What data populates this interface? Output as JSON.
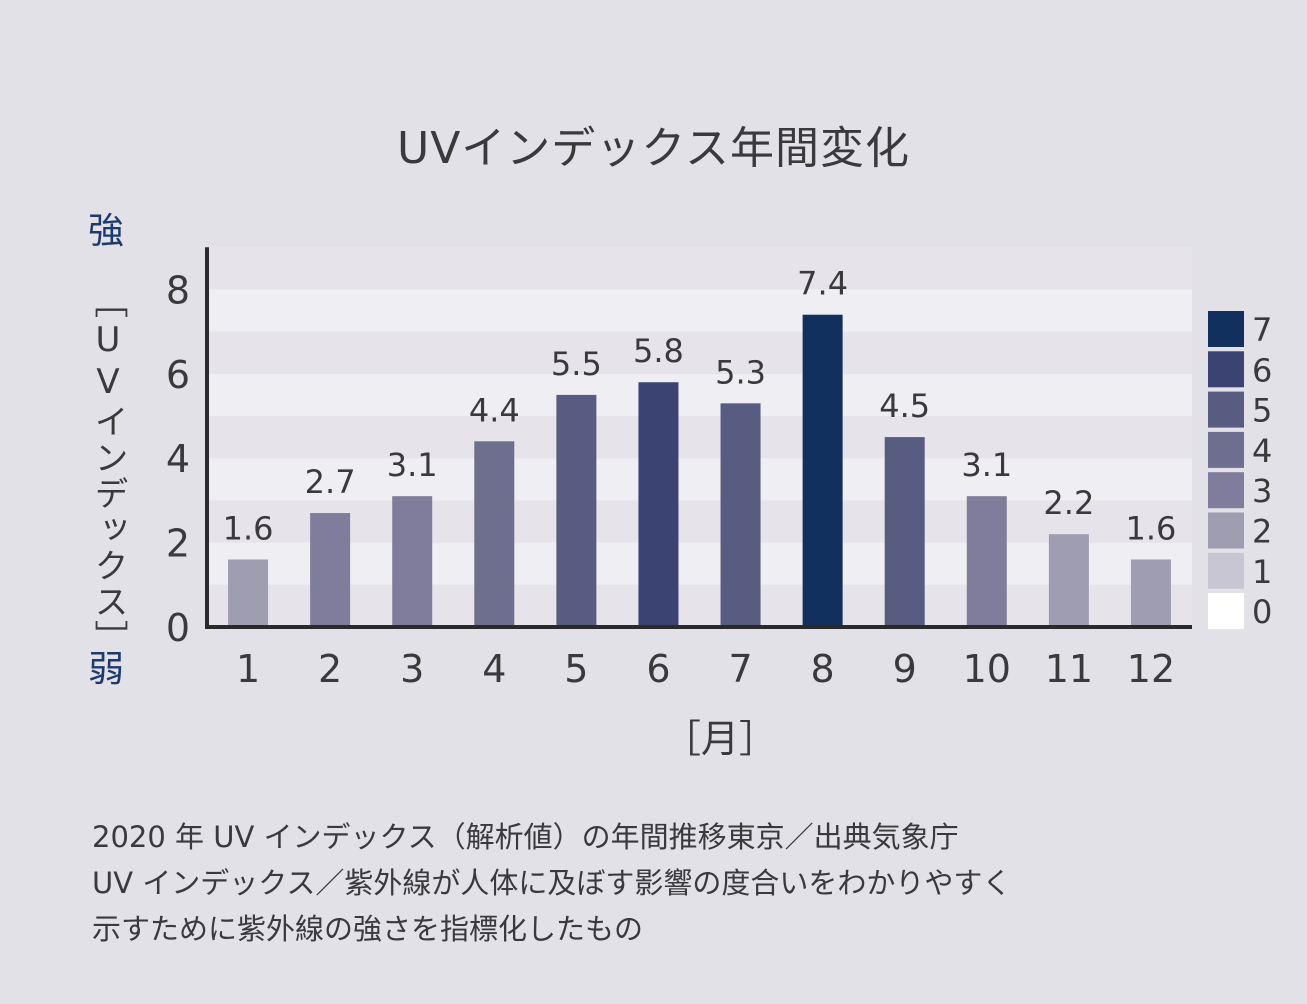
{
  "title": "UVインデックス年間変化",
  "side_top": "強",
  "side_bottom": "弱",
  "ylabel": "［UVインデックス］",
  "xlabel": "［月］",
  "footnote": [
    "2020 年 UV インデックス（解析値）の年間推移東京／出典気象庁",
    "UV インデックス／紫外線が人体に及ぼす影響の度合いをわかりやすく",
    "示すために紫外線の強さを指標化したもの"
  ],
  "chart_data": {
    "type": "bar",
    "categories": [
      "1",
      "2",
      "3",
      "4",
      "5",
      "6",
      "7",
      "8",
      "9",
      "10",
      "11",
      "12"
    ],
    "values": [
      1.6,
      2.7,
      3.1,
      4.4,
      5.5,
      5.8,
      5.3,
      7.4,
      4.5,
      3.1,
      2.2,
      1.6
    ],
    "data_labels": [
      "1.6",
      "2.7",
      "3.1",
      "4.4",
      "5.5",
      "5.8",
      "5.3",
      "7.4",
      "4.5",
      "3.1",
      "2.2",
      "1.6"
    ],
    "ylim": [
      0,
      9
    ],
    "yticks": [
      0,
      2,
      4,
      6,
      8
    ],
    "grid": "horizontal bands",
    "legend_position": "right",
    "color_scale": [
      {
        "level": "7",
        "color": "#12305e"
      },
      {
        "level": "6",
        "color": "#3a4372"
      },
      {
        "level": "5",
        "color": "#585c80"
      },
      {
        "level": "4",
        "color": "#6e6e8e"
      },
      {
        "level": "3",
        "color": "#807d9c"
      },
      {
        "level": "2",
        "color": "#9f9db2"
      },
      {
        "level": "1",
        "color": "#c9c6d4"
      },
      {
        "level": "0",
        "color": "#ffffff"
      }
    ],
    "bar_colors": [
      "#9f9db2",
      "#807d9c",
      "#807d9c",
      "#6e6e8e",
      "#585c80",
      "#3a4372",
      "#585c80",
      "#12305e",
      "#585c80",
      "#807d9c",
      "#9f9db2",
      "#9f9db2"
    ]
  }
}
